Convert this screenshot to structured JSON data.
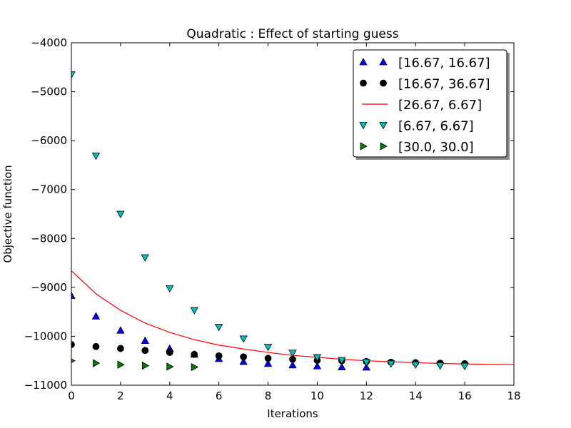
{
  "chart_data": {
    "type": "scatter",
    "title": "Quadratic : Effect of starting guess",
    "xlabel": "Iterations",
    "ylabel": "Objective function",
    "xlim": [
      0,
      18
    ],
    "ylim": [
      -11000,
      -4000
    ],
    "xticks": [
      0,
      2,
      4,
      6,
      8,
      10,
      12,
      14,
      16,
      18
    ],
    "yticks": [
      -11000,
      -10000,
      -9000,
      -8000,
      -7000,
      -6000,
      -5000,
      -4000
    ],
    "xtick_labels": [
      "0",
      "2",
      "4",
      "6",
      "8",
      "10",
      "12",
      "14",
      "16",
      "18"
    ],
    "ytick_labels": [
      "−11000",
      "−10000",
      "−9000",
      "−8000",
      "−7000",
      "−6000",
      "−5000",
      "−4000"
    ],
    "grid": false,
    "legend_position": "top-right",
    "series": [
      {
        "name": "[16.67, 16.67]",
        "marker": "triangle-up",
        "color": "#0000ff",
        "x": [
          0,
          1,
          2,
          3,
          4,
          5,
          6,
          7,
          8,
          9,
          10,
          11,
          12
        ],
        "y": [
          -9170,
          -9590,
          -9880,
          -10090,
          -10250,
          -10370,
          -10460,
          -10520,
          -10560,
          -10590,
          -10610,
          -10630,
          -10635
        ]
      },
      {
        "name": "[16.67, 36.67]",
        "marker": "circle",
        "color": "#000000",
        "x": [
          0,
          1,
          2,
          3,
          4,
          5,
          6,
          7,
          8,
          9,
          10,
          11,
          12,
          13,
          14,
          15,
          16
        ],
        "y": [
          -10170,
          -10210,
          -10250,
          -10290,
          -10330,
          -10370,
          -10400,
          -10420,
          -10450,
          -10470,
          -10490,
          -10500,
          -10515,
          -10530,
          -10540,
          -10550,
          -10560
        ]
      },
      {
        "name": "[26.67, 6.67]",
        "marker": "line",
        "color": "#ff0000",
        "x": [
          0,
          1,
          2,
          3,
          4,
          5,
          6,
          7,
          8,
          9,
          10,
          11,
          12,
          13,
          14,
          15,
          16,
          17,
          18
        ],
        "y": [
          -8660,
          -9130,
          -9470,
          -9730,
          -9920,
          -10070,
          -10180,
          -10260,
          -10330,
          -10390,
          -10430,
          -10470,
          -10500,
          -10520,
          -10540,
          -10555,
          -10565,
          -10575,
          -10580
        ]
      },
      {
        "name": "[6.67, 6.67]",
        "marker": "triangle-down",
        "color": "#00bfbf",
        "x": [
          0,
          1,
          2,
          3,
          4,
          5,
          6,
          7,
          8,
          9,
          10,
          11,
          12,
          13,
          14,
          15,
          16
        ],
        "y": [
          -4650,
          -6310,
          -7500,
          -8390,
          -9020,
          -9470,
          -9810,
          -10050,
          -10220,
          -10340,
          -10430,
          -10490,
          -10530,
          -10560,
          -10580,
          -10600,
          -10610
        ]
      },
      {
        "name": "[30.0, 30.0]",
        "marker": "triangle-right",
        "color": "#008000",
        "x": [
          0,
          1,
          2,
          3,
          4,
          5
        ],
        "y": [
          -10500,
          -10550,
          -10580,
          -10600,
          -10620,
          -10630
        ]
      }
    ]
  }
}
